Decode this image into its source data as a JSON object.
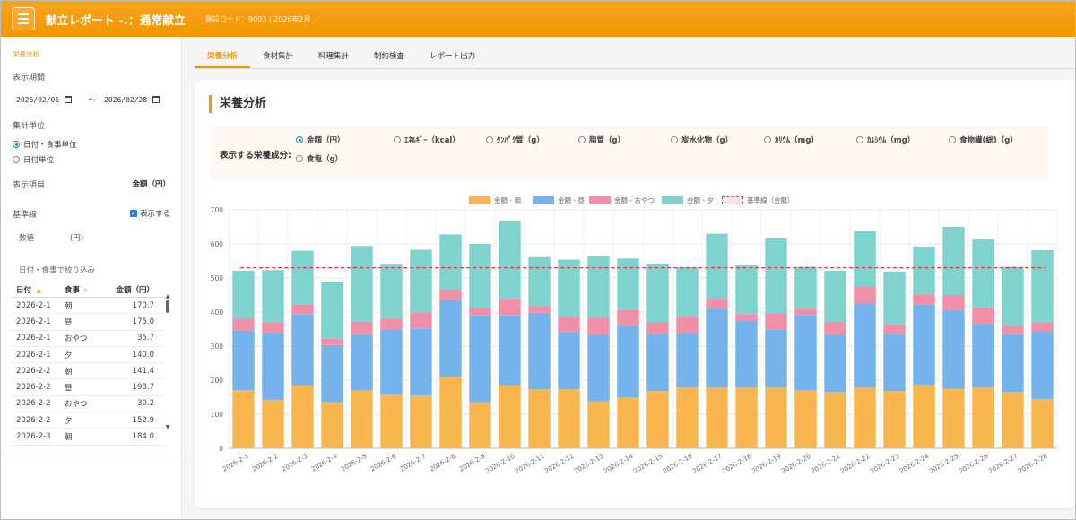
{
  "header": {
    "title": "献立レポート -.：通常献立",
    "subtitle": "施設コード：9003 | 2026年2月"
  },
  "sidebar": {
    "section_title": "栄養分析",
    "period_label": "表示期間",
    "date_from": "2026/02/01",
    "date_to": "2026/02/28",
    "tilde": "〜",
    "aggregate_label": "集計単位",
    "aggregate_options": [
      "日付・食事単位",
      "日付単位"
    ],
    "aggregate_selected": 0,
    "display_item_label": "表示項目",
    "display_item_value": "金額（円）",
    "baseline_label": "基準線",
    "baseline_check_label": "表示する",
    "baseline_checked": true,
    "value_label": "数値",
    "value_unit": "(円)",
    "filter_label": "日付・食事で絞り込み",
    "table": {
      "headers": [
        "日付",
        "食事",
        "金額（円）"
      ],
      "rows": [
        [
          "2026-2-1",
          "朝",
          "170.7"
        ],
        [
          "2026-2-1",
          "昼",
          "175.0"
        ],
        [
          "2026-2-1",
          "おやつ",
          "35.7"
        ],
        [
          "2026-2-1",
          "夕",
          "140.0"
        ],
        [
          "2026-2-2",
          "朝",
          "141.4"
        ],
        [
          "2026-2-2",
          "昼",
          "198.7"
        ],
        [
          "2026-2-2",
          "おやつ",
          "30.2"
        ],
        [
          "2026-2-2",
          "夕",
          "152.9"
        ],
        [
          "2026-2-3",
          "朝",
          "184.0"
        ]
      ]
    }
  },
  "tabs": [
    "栄養分析",
    "食材集計",
    "料理集計",
    "制約検査",
    "レポート出力"
  ],
  "active_tab": 0,
  "main": {
    "title": "栄養分析",
    "nutrient_label": "表示する栄養成分:",
    "nutrient_options": [
      "金額（円）",
      "ｴﾈﾙｷﾞｰ（kcal）",
      "ﾀﾝﾊﾟｸ質（g）",
      "脂質（g）",
      "炭水化物（g）",
      "ｶﾘｳﾑ（mg）",
      "ｶﾙｼｳﾑ（mg）",
      "食物繊(総)（g）",
      "食塩（g）"
    ],
    "nutrient_selected": 0
  },
  "colors": {
    "accent": "#f39600",
    "breakfast": "#f9b64e",
    "lunch": "#74b3ec",
    "snack": "#f28fa8",
    "dinner": "#7fd3cf",
    "baseline": "#d9364b"
  },
  "chart_data": {
    "type": "bar",
    "stacked": true,
    "categories": [
      "2026-2-1",
      "2026-2-2",
      "2026-2-3",
      "2026-2-4",
      "2026-2-5",
      "2026-2-6",
      "2026-2-7",
      "2026-2-8",
      "2026-2-9",
      "2026-2-10",
      "2026-2-11",
      "2026-2-12",
      "2026-2-13",
      "2026-2-14",
      "2026-2-15",
      "2026-2-16",
      "2026-2-17",
      "2026-2-18",
      "2026-2-19",
      "2026-2-20",
      "2026-2-21",
      "2026-2-22",
      "2026-2-23",
      "2026-2-24",
      "2026-2-25",
      "2026-2-26",
      "2026-2-27",
      "2026-2-28"
    ],
    "series": [
      {
        "name": "金額 - 朝",
        "values": [
          170.7,
          141.4,
          184.0,
          135,
          170,
          157,
          155,
          210,
          135,
          185,
          173,
          173,
          138,
          150,
          168,
          178,
          178,
          178,
          178,
          170,
          165,
          178,
          168,
          187,
          175,
          178,
          165,
          145
        ]
      },
      {
        "name": "金額 - 昼",
        "values": [
          175.0,
          198.7,
          210,
          168,
          165,
          192,
          197,
          225,
          255,
          205,
          225,
          168,
          195,
          210,
          168,
          160,
          232,
          198,
          170,
          220,
          168,
          247,
          168,
          235,
          230,
          188,
          170,
          197
        ]
      },
      {
        "name": "金額 - おやつ",
        "values": [
          35.7,
          30.2,
          28,
          20,
          37,
          32,
          47,
          28,
          22,
          47,
          20,
          45,
          50,
          47,
          35,
          48,
          28,
          18,
          48,
          20,
          38,
          50,
          28,
          30,
          45,
          45,
          23,
          28
        ]
      },
      {
        "name": "金額 - 夕",
        "values": [
          140.0,
          152.9,
          158,
          166,
          222,
          158,
          184,
          165,
          188,
          230,
          143,
          168,
          180,
          150,
          170,
          146,
          192,
          143,
          220,
          123,
          150,
          162,
          155,
          140,
          200,
          202,
          175,
          212
        ]
      }
    ],
    "baseline": {
      "name": "基準線（金額）",
      "value": 530
    },
    "ylim": [
      0,
      700
    ],
    "yticks": [
      0,
      100,
      200,
      300,
      400,
      500,
      600,
      700
    ],
    "legend_position": "top",
    "grid": true
  }
}
